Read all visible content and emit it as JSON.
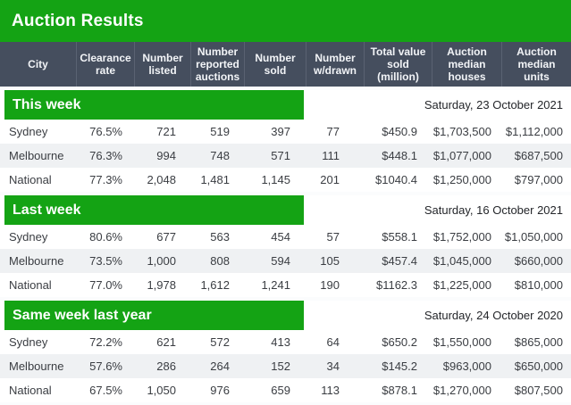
{
  "title": "Auction Results",
  "colors": {
    "green": "#14a314",
    "header_bg": "#454e5e",
    "header_separator": "#5a6272",
    "alt_row_bg": "#eff1f3",
    "text": "#3a3d42"
  },
  "chart_data": {
    "type": "table",
    "title": "Auction Results",
    "columns": [
      "City",
      "Clearance rate",
      "Number listed",
      "Number reported auctions",
      "Number sold",
      "Number w/drawn",
      "Total value sold (million)",
      "Auction median houses",
      "Auction median units"
    ],
    "sections": [
      {
        "name": "This week",
        "date": "Saturday, 23 October 2021",
        "rows": [
          [
            "Sydney",
            "76.5%",
            "721",
            "519",
            "397",
            "77",
            "$450.9",
            "$1,703,500",
            "$1,112,000"
          ],
          [
            "Melbourne",
            "76.3%",
            "994",
            "748",
            "571",
            "111",
            "$448.1",
            "$1,077,000",
            "$687,500"
          ],
          [
            "National",
            "77.3%",
            "2,048",
            "1,481",
            "1,145",
            "201",
            "$1040.4",
            "$1,250,000",
            "$797,000"
          ]
        ]
      },
      {
        "name": "Last week",
        "date": "Saturday, 16 October 2021",
        "rows": [
          [
            "Sydney",
            "80.6%",
            "677",
            "563",
            "454",
            "57",
            "$558.1",
            "$1,752,000",
            "$1,050,000"
          ],
          [
            "Melbourne",
            "73.5%",
            "1,000",
            "808",
            "594",
            "105",
            "$457.4",
            "$1,045,000",
            "$660,000"
          ],
          [
            "National",
            "77.0%",
            "1,978",
            "1,612",
            "1,241",
            "190",
            "$1162.3",
            "$1,225,000",
            "$810,000"
          ]
        ]
      },
      {
        "name": "Same week last year",
        "date": "Saturday, 24 October 2020",
        "rows": [
          [
            "Sydney",
            "72.2%",
            "621",
            "572",
            "413",
            "64",
            "$650.2",
            "$1,550,000",
            "$865,000"
          ],
          [
            "Melbourne",
            "57.6%",
            "286",
            "264",
            "152",
            "34",
            "$145.2",
            "$963,000",
            "$650,000"
          ],
          [
            "National",
            "67.5%",
            "1,050",
            "976",
            "659",
            "113",
            "$878.1",
            "$1,270,000",
            "$807,500"
          ]
        ]
      }
    ]
  }
}
